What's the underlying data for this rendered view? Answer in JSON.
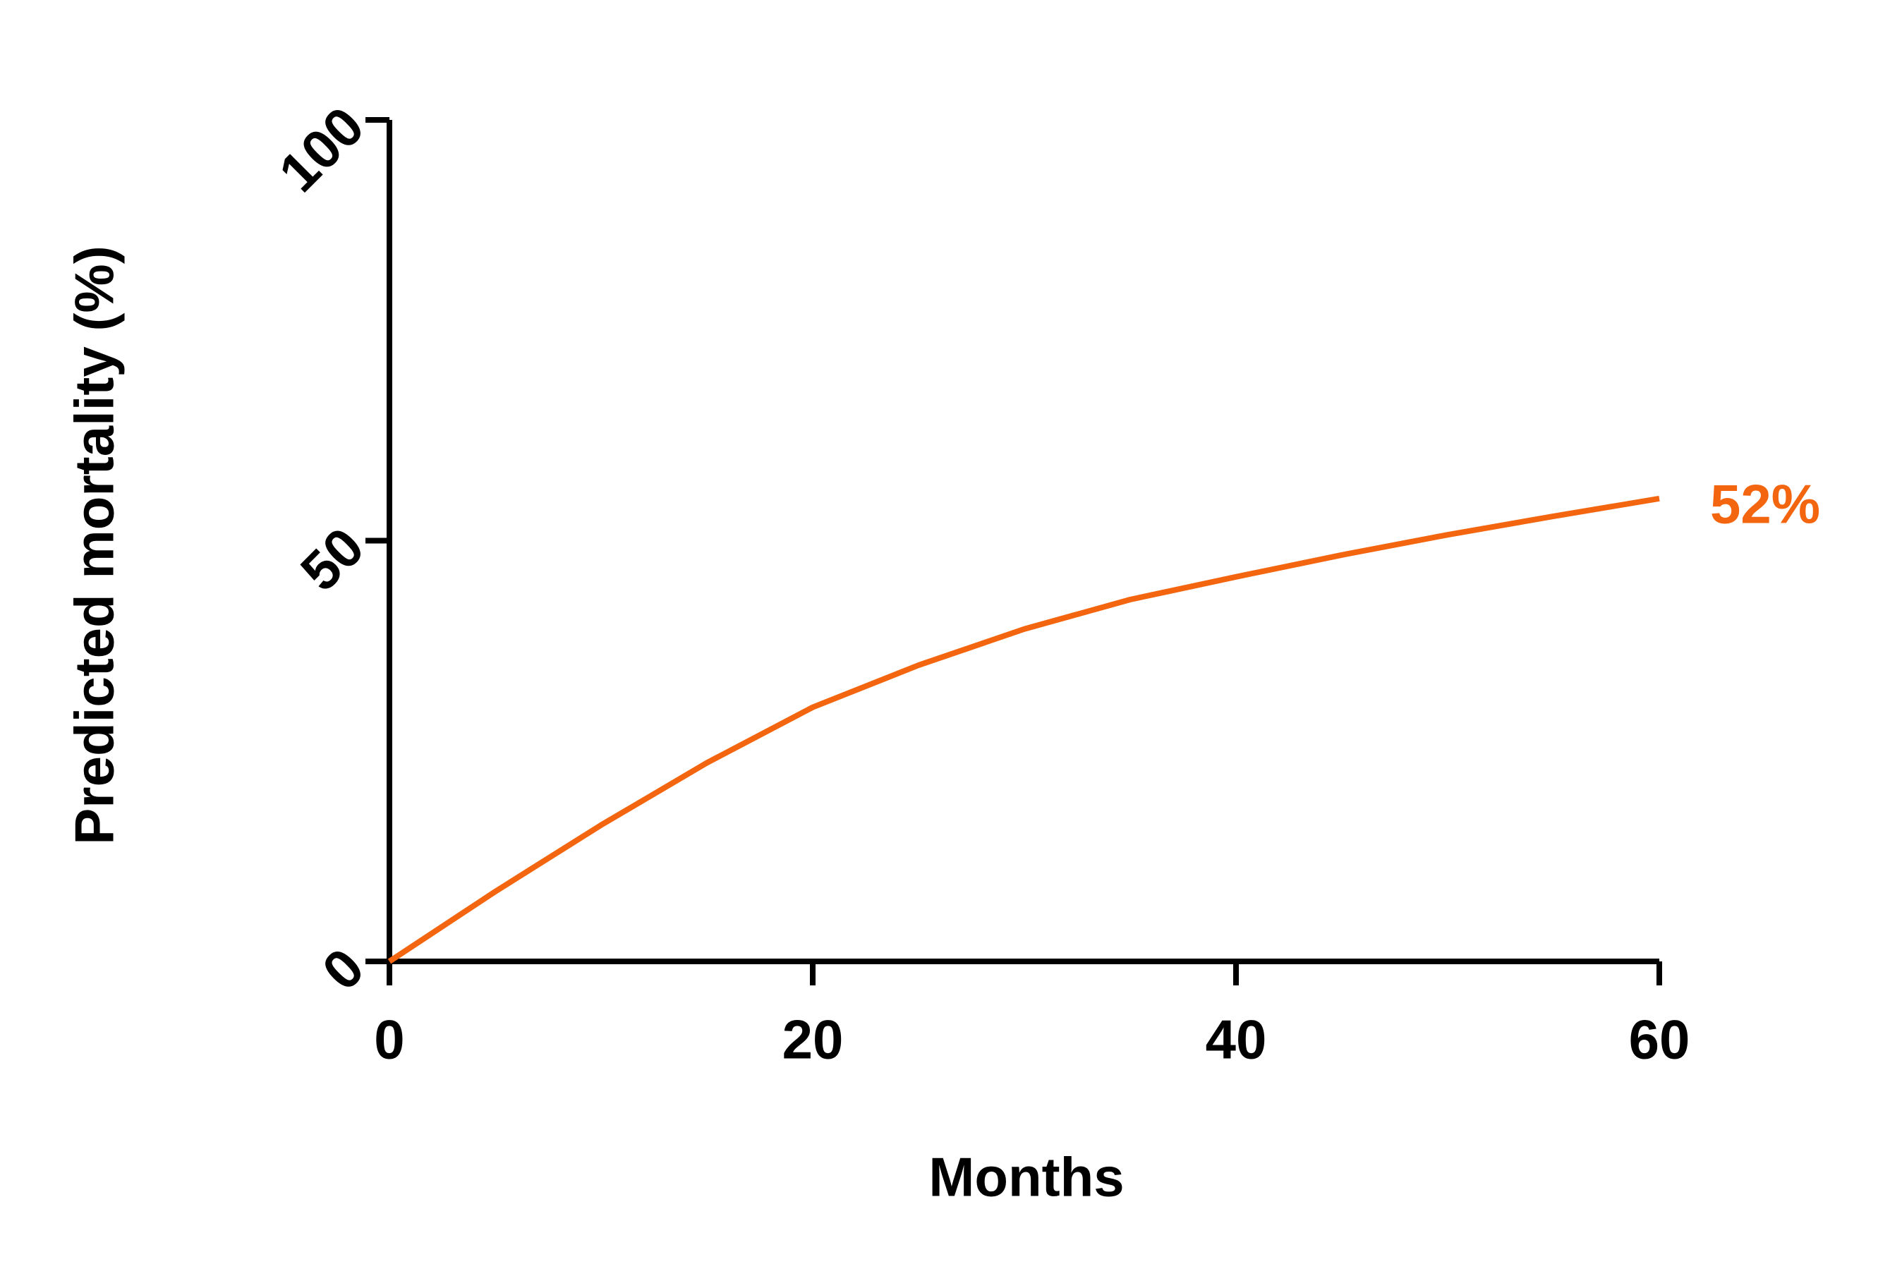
{
  "chart_data": {
    "type": "line",
    "x_label": "Months",
    "y_label": "Predicted mortality (%)",
    "annotation": "52%",
    "x": [
      0,
      5,
      10,
      15,
      20,
      25,
      30,
      35,
      40,
      45,
      50,
      55,
      60
    ],
    "series": [
      {
        "color": "#f4650f",
        "values": [
          0,
          8.3,
          16.2,
          23.6,
          30.2,
          35.2,
          39.5,
          43,
          45.7,
          48.3,
          50.7,
          52.9,
          55
        ]
      }
    ],
    "xlim": [
      0,
      60
    ],
    "xticks": [
      0,
      20,
      40,
      60
    ],
    "ylim": [
      0,
      100
    ],
    "yticks": [
      0,
      50,
      100
    ],
    "grid": false
  }
}
